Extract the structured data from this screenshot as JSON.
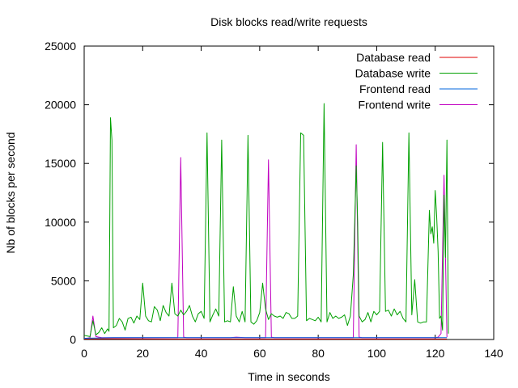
{
  "chart_data": {
    "type": "line",
    "title": "Disk blocks read/write requests",
    "xlabel": "Time in seconds",
    "ylabel": "Nb of blocks per second",
    "xlim": [
      0,
      140
    ],
    "ylim": [
      0,
      25000
    ],
    "x_ticks": [
      0,
      20,
      40,
      60,
      80,
      100,
      120,
      140
    ],
    "y_ticks": [
      0,
      5000,
      10000,
      15000,
      20000,
      25000
    ],
    "x_tick_labels": [
      "0",
      "20",
      "40",
      "60",
      "80",
      "100",
      "120",
      "140"
    ],
    "y_tick_labels": [
      "0",
      "5000",
      "10000",
      "15000",
      "20000",
      "25000"
    ],
    "grid": false,
    "legend_position": "top-right",
    "series": [
      {
        "name": "Database read",
        "color": "#e00000",
        "points": [
          [
            0,
            50
          ],
          [
            10,
            60
          ],
          [
            20,
            50
          ],
          [
            30,
            40
          ],
          [
            40,
            40
          ],
          [
            50,
            40
          ],
          [
            60,
            40
          ],
          [
            70,
            40
          ],
          [
            80,
            40
          ],
          [
            90,
            40
          ],
          [
            100,
            40
          ],
          [
            110,
            40
          ],
          [
            120,
            40
          ],
          [
            124,
            40
          ]
        ]
      },
      {
        "name": "Database write",
        "color": "#00a000",
        "points": [
          [
            0,
            350
          ],
          [
            1,
            300
          ],
          [
            2,
            250
          ],
          [
            3,
            1600
          ],
          [
            4,
            400
          ],
          [
            5,
            600
          ],
          [
            6,
            1000
          ],
          [
            7,
            500
          ],
          [
            8,
            900
          ],
          [
            8.5,
            700
          ],
          [
            9,
            18900
          ],
          [
            9.5,
            17000
          ],
          [
            10,
            1000
          ],
          [
            11,
            1200
          ],
          [
            12,
            1800
          ],
          [
            13,
            1500
          ],
          [
            14,
            800
          ],
          [
            15,
            1800
          ],
          [
            16,
            1900
          ],
          [
            17,
            1400
          ],
          [
            18,
            2000
          ],
          [
            19,
            1700
          ],
          [
            20,
            4800
          ],
          [
            21,
            2000
          ],
          [
            22,
            1600
          ],
          [
            23,
            1500
          ],
          [
            24,
            2800
          ],
          [
            25,
            2500
          ],
          [
            26,
            1600
          ],
          [
            27,
            2900
          ],
          [
            28,
            2300
          ],
          [
            29,
            2000
          ],
          [
            30,
            4800
          ],
          [
            31,
            2200
          ],
          [
            32,
            2000
          ],
          [
            33,
            2500
          ],
          [
            34,
            2100
          ],
          [
            35,
            2400
          ],
          [
            36,
            2900
          ],
          [
            37,
            2000
          ],
          [
            38,
            1500
          ],
          [
            39,
            2200
          ],
          [
            40,
            2400
          ],
          [
            41,
            1800
          ],
          [
            42,
            17600
          ],
          [
            43,
            1500
          ],
          [
            44,
            2100
          ],
          [
            45,
            2600
          ],
          [
            46,
            2000
          ],
          [
            47,
            17000
          ],
          [
            48,
            1500
          ],
          [
            49,
            1600
          ],
          [
            50,
            1500
          ],
          [
            51,
            4500
          ],
          [
            52,
            2000
          ],
          [
            53,
            1500
          ],
          [
            54,
            2400
          ],
          [
            55,
            1500
          ],
          [
            56,
            17400
          ],
          [
            57,
            1500
          ],
          [
            58,
            1300
          ],
          [
            59,
            1600
          ],
          [
            60,
            2300
          ],
          [
            61,
            4800
          ],
          [
            62,
            2600
          ],
          [
            63,
            1700
          ],
          [
            64,
            2200
          ],
          [
            65,
            2000
          ],
          [
            66,
            1900
          ],
          [
            67,
            2000
          ],
          [
            68,
            1800
          ],
          [
            69,
            2300
          ],
          [
            70,
            2200
          ],
          [
            71,
            1800
          ],
          [
            72,
            1800
          ],
          [
            73,
            2000
          ],
          [
            74,
            17600
          ],
          [
            75,
            17400
          ],
          [
            76,
            1600
          ],
          [
            77,
            1800
          ],
          [
            78,
            1700
          ],
          [
            79,
            1600
          ],
          [
            80,
            1900
          ],
          [
            81,
            1500
          ],
          [
            82,
            20100
          ],
          [
            83,
            1500
          ],
          [
            84,
            2300
          ],
          [
            85,
            1800
          ],
          [
            86,
            2000
          ],
          [
            87,
            1800
          ],
          [
            88,
            1900
          ],
          [
            89,
            2100
          ],
          [
            90,
            1200
          ],
          [
            91,
            2000
          ],
          [
            92,
            5500
          ],
          [
            93,
            14800
          ],
          [
            93.5,
            10000
          ],
          [
            94,
            2000
          ],
          [
            95,
            1500
          ],
          [
            96,
            1700
          ],
          [
            97,
            2300
          ],
          [
            98,
            1500
          ],
          [
            99,
            2400
          ],
          [
            100,
            2100
          ],
          [
            101,
            2400
          ],
          [
            102,
            16800
          ],
          [
            103,
            2400
          ],
          [
            104,
            2500
          ],
          [
            105,
            2000
          ],
          [
            106,
            2600
          ],
          [
            107,
            2100
          ],
          [
            108,
            2400
          ],
          [
            109,
            1800
          ],
          [
            110,
            1500
          ],
          [
            111,
            17600
          ],
          [
            112,
            2100
          ],
          [
            113,
            5100
          ],
          [
            114,
            1500
          ],
          [
            115,
            1400
          ],
          [
            116,
            1500
          ],
          [
            117,
            1500
          ],
          [
            118,
            11000
          ],
          [
            118.5,
            9000
          ],
          [
            119,
            9600
          ],
          [
            119.5,
            8200
          ],
          [
            120,
            12700
          ],
          [
            120.5,
            10500
          ],
          [
            121,
            7500
          ],
          [
            121.5,
            1800
          ],
          [
            122,
            2000
          ],
          [
            122.5,
            800
          ],
          [
            123,
            12300
          ],
          [
            123.5,
            7000
          ],
          [
            124,
            17000
          ],
          [
            124.5,
            500
          ]
        ]
      },
      {
        "name": "Frontend read",
        "color": "#0066dd",
        "points": [
          [
            0,
            100
          ],
          [
            10,
            150
          ],
          [
            20,
            150
          ],
          [
            30,
            150
          ],
          [
            40,
            150
          ],
          [
            50,
            150
          ],
          [
            60,
            150
          ],
          [
            70,
            150
          ],
          [
            80,
            150
          ],
          [
            90,
            150
          ],
          [
            100,
            150
          ],
          [
            110,
            150
          ],
          [
            120,
            150
          ],
          [
            124,
            150
          ]
        ]
      },
      {
        "name": "Frontend write",
        "color": "#c000c0",
        "points": [
          [
            0,
            100
          ],
          [
            1,
            100
          ],
          [
            2,
            150
          ],
          [
            3,
            2000
          ],
          [
            4,
            250
          ],
          [
            5,
            200
          ],
          [
            6,
            150
          ],
          [
            10,
            150
          ],
          [
            20,
            150
          ],
          [
            30,
            150
          ],
          [
            32,
            150
          ],
          [
            33,
            15500
          ],
          [
            34,
            200
          ],
          [
            35,
            150
          ],
          [
            40,
            150
          ],
          [
            50,
            150
          ],
          [
            52,
            200
          ],
          [
            55,
            150
          ],
          [
            60,
            150
          ],
          [
            62,
            150
          ],
          [
            63,
            15300
          ],
          [
            64,
            200
          ],
          [
            65,
            150
          ],
          [
            70,
            150
          ],
          [
            80,
            150
          ],
          [
            90,
            150
          ],
          [
            92,
            150
          ],
          [
            93,
            16600
          ],
          [
            94,
            200
          ],
          [
            95,
            150
          ],
          [
            100,
            150
          ],
          [
            110,
            150
          ],
          [
            120,
            150
          ],
          [
            121,
            200
          ],
          [
            122,
            500
          ],
          [
            123,
            14000
          ],
          [
            124,
            200
          ]
        ]
      }
    ]
  }
}
